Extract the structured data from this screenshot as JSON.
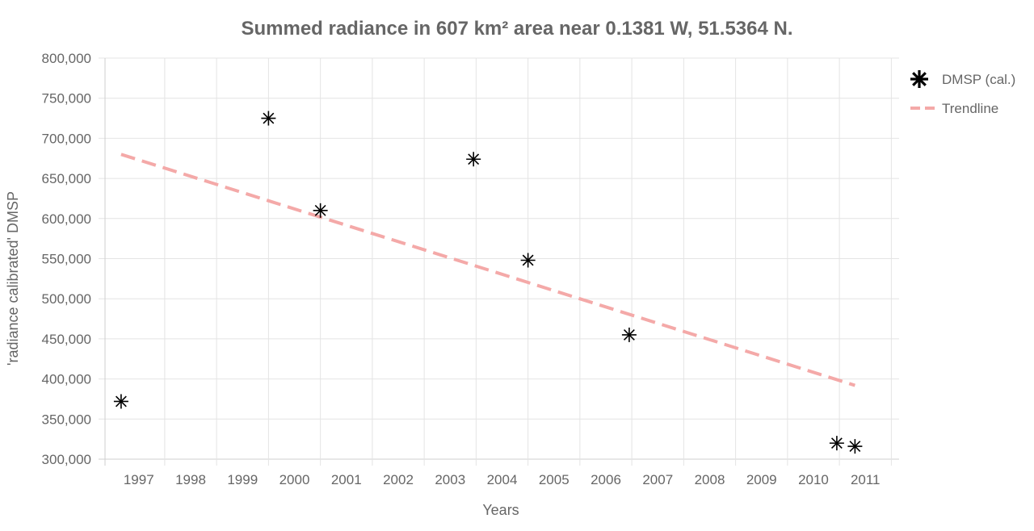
{
  "chart_data": {
    "type": "scatter",
    "title": "Summed radiance in 607 km² area near 0.1381 W, 51.5364 N.",
    "xlabel": "Years",
    "ylabel": "'radiance calibrated' DMSP",
    "x_ticks": [
      "1997",
      "1998",
      "1999",
      "2000",
      "2001",
      "2002",
      "2003",
      "2004",
      "2005",
      "2006",
      "2007",
      "2008",
      "2009",
      "2010",
      "2011"
    ],
    "y_ticks": [
      "800,000",
      "750,000",
      "700,000",
      "650,000",
      "600,000",
      "550,000",
      "500,000",
      "450,000",
      "400,000",
      "350,000",
      "300,000"
    ],
    "xlim": [
      1996.35,
      2011.65
    ],
    "ylim": [
      300000,
      800000
    ],
    "grid": true,
    "legend_position": "right",
    "series": [
      {
        "name": "DMSP (cal.)",
        "marker": "asterisk",
        "color": "#000000",
        "x": [
          1996.66,
          1999.5,
          2000.5,
          2003.45,
          2004.5,
          2006.45,
          2010.45,
          2010.8
        ],
        "y": [
          372000,
          725000,
          610000,
          674000,
          548000,
          455000,
          320000,
          316000
        ]
      },
      {
        "name": "Trendline",
        "style": "dashed",
        "color": "#f4a9a8",
        "x": [
          1996.66,
          2010.8
        ],
        "y": [
          680000,
          392000
        ]
      }
    ]
  }
}
